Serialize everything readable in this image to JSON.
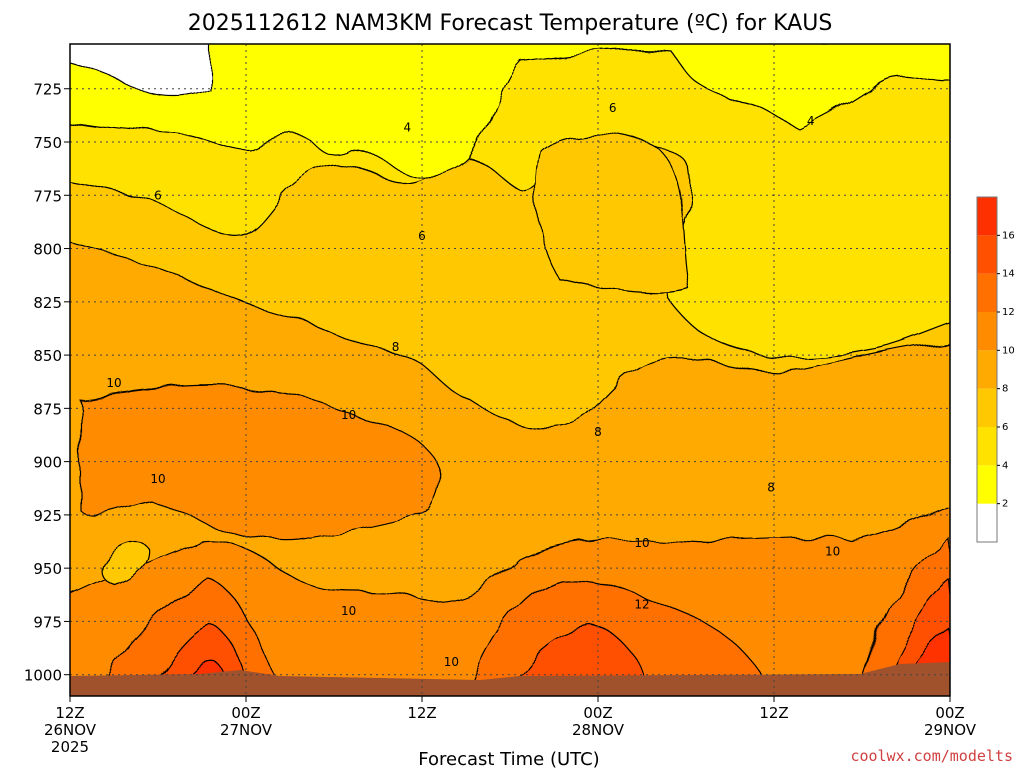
{
  "chart_data": {
    "type": "heatmap",
    "title": "2025112612 NAM3KM Forecast Temperature (ºC) for KAUS",
    "xlabel": "Forecast Time (UTC)",
    "ylabel": "",
    "x_range_hours": [
      0,
      60
    ],
    "y_range_hpa": [
      704,
      1010
    ],
    "x_ticks": [
      {
        "hour": 0,
        "line1": "12Z",
        "line2": "26NOV",
        "line3": "2025"
      },
      {
        "hour": 12,
        "line1": "00Z",
        "line2": "27NOV",
        "line3": ""
      },
      {
        "hour": 24,
        "line1": "12Z",
        "line2": "",
        "line3": ""
      },
      {
        "hour": 36,
        "line1": "00Z",
        "line2": "28NOV",
        "line3": ""
      },
      {
        "hour": 48,
        "line1": "12Z",
        "line2": "",
        "line3": ""
      },
      {
        "hour": 60,
        "line1": "00Z",
        "line2": "29NOV",
        "line3": ""
      }
    ],
    "y_ticks": [
      725,
      750,
      775,
      800,
      825,
      850,
      875,
      900,
      925,
      950,
      975,
      1000
    ],
    "grid": true,
    "colorbar": {
      "levels": [
        2,
        4,
        6,
        8,
        10,
        12,
        14,
        16
      ],
      "colors": [
        "#ffffff",
        "#ffff00",
        "#ffe200",
        "#ffc800",
        "#ffaa00",
        "#ff8c00",
        "#ff7000",
        "#ff5000",
        "#ff3000"
      ]
    },
    "contour_labels": [
      {
        "text": "4",
        "hour": 23.0,
        "hpa": 745
      },
      {
        "text": "4",
        "hour": 50.5,
        "hpa": 742
      },
      {
        "text": "6",
        "hour": 37.0,
        "hpa": 736
      },
      {
        "text": "6",
        "hour": 6.0,
        "hpa": 777
      },
      {
        "text": "6",
        "hour": 24.0,
        "hpa": 796
      },
      {
        "text": "8",
        "hour": 22.2,
        "hpa": 848
      },
      {
        "text": "8",
        "hour": 36.0,
        "hpa": 888
      },
      {
        "text": "8",
        "hour": 47.8,
        "hpa": 914
      },
      {
        "text": "10",
        "hour": 3.0,
        "hpa": 865
      },
      {
        "text": "10",
        "hour": 19.0,
        "hpa": 880
      },
      {
        "text": "10",
        "hour": 6.0,
        "hpa": 910
      },
      {
        "text": "10",
        "hour": 39.0,
        "hpa": 940
      },
      {
        "text": "10",
        "hour": 52.0,
        "hpa": 944
      },
      {
        "text": "10",
        "hour": 19.0,
        "hpa": 972
      },
      {
        "text": "10",
        "hour": 26.0,
        "hpa": 996
      },
      {
        "text": "12",
        "hour": 39.0,
        "hpa": 969
      }
    ],
    "credit": "coolwx.com/modelts"
  }
}
